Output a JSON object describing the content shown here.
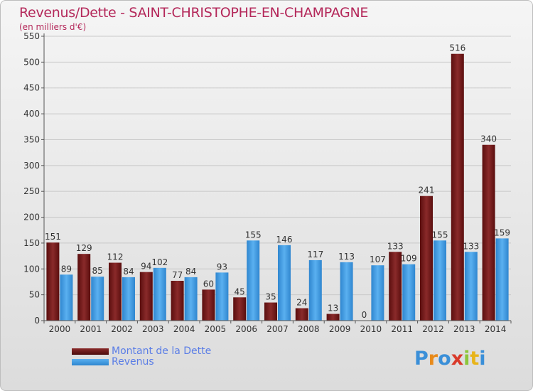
{
  "title": "Revenus/Dette - SAINT-CHRISTOPHE-EN-CHAMPAGNE",
  "subtitle": "(en milliers d'€)",
  "colors": {
    "series_dette": "#7a1a1a",
    "series_revenus": "#3a9ae0",
    "title": "#b4285a",
    "legend_text": "#5a7de6"
  },
  "legend": {
    "items": [
      {
        "label": "Montant de la Dette",
        "color": "#7a1a1a"
      },
      {
        "label": "Revenus",
        "color": "#3a9ae0"
      }
    ]
  },
  "logo": {
    "text": "Proxiti"
  },
  "chart_data": {
    "type": "bar",
    "title": "Revenus/Dette - SAINT-CHRISTOPHE-EN-CHAMPAGNE",
    "subtitle": "(en milliers d'€)",
    "xlabel": "",
    "ylabel": "",
    "ylim": [
      0,
      550
    ],
    "yticks": [
      0,
      50,
      100,
      150,
      200,
      250,
      300,
      350,
      400,
      450,
      500,
      550
    ],
    "grid": true,
    "legend_position": "bottom-left",
    "categories": [
      "2000",
      "2001",
      "2002",
      "2003",
      "2004",
      "2005",
      "2006",
      "2007",
      "2008",
      "2009",
      "2010",
      "2011",
      "2012",
      "2013",
      "2014"
    ],
    "series": [
      {
        "name": "Montant de la Dette",
        "values": [
          151,
          129,
          112,
          94,
          77,
          60,
          45,
          35,
          24,
          13,
          0,
          133,
          241,
          516,
          340
        ]
      },
      {
        "name": "Revenus",
        "values": [
          89,
          85,
          84,
          102,
          84,
          93,
          155,
          146,
          117,
          113,
          107,
          109,
          155,
          133,
          159
        ]
      }
    ]
  }
}
